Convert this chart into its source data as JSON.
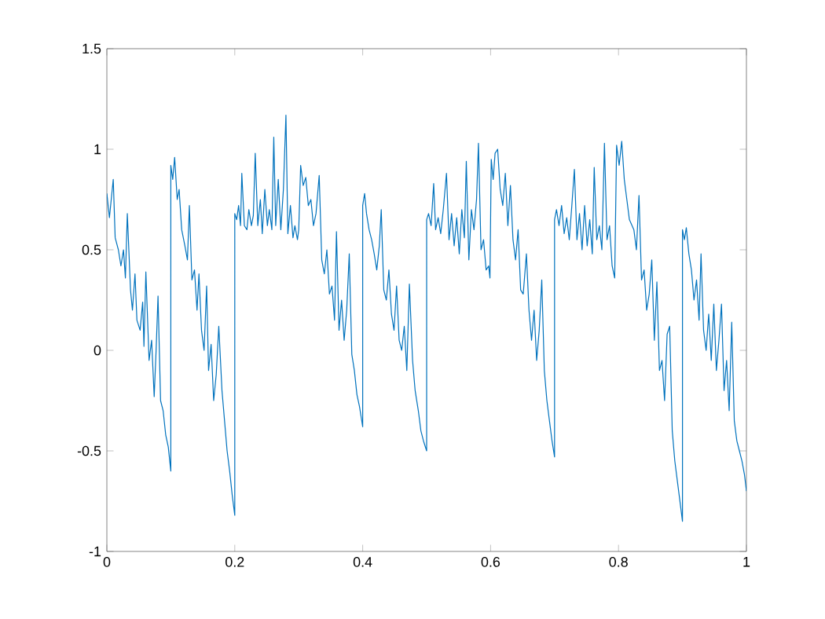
{
  "chart_data": {
    "type": "line",
    "color": "#0072bd",
    "x": [
      0.0,
      0.004,
      0.01,
      0.013,
      0.018,
      0.022,
      0.026,
      0.029,
      0.032,
      0.037,
      0.04,
      0.044,
      0.047,
      0.052,
      0.056,
      0.058,
      0.061,
      0.066,
      0.07,
      0.074,
      0.077,
      0.08,
      0.084,
      0.088,
      0.092,
      0.096,
      0.1,
      0.1,
      0.103,
      0.106,
      0.11,
      0.113,
      0.117,
      0.122,
      0.126,
      0.129,
      0.133,
      0.137,
      0.141,
      0.144,
      0.148,
      0.152,
      0.156,
      0.159,
      0.163,
      0.167,
      0.171,
      0.175,
      0.18,
      0.184,
      0.188,
      0.192,
      0.196,
      0.2,
      0.2,
      0.203,
      0.206,
      0.209,
      0.211,
      0.215,
      0.219,
      0.222,
      0.226,
      0.229,
      0.232,
      0.236,
      0.24,
      0.243,
      0.247,
      0.251,
      0.254,
      0.258,
      0.261,
      0.264,
      0.268,
      0.272,
      0.276,
      0.28,
      0.283,
      0.287,
      0.291,
      0.294,
      0.298,
      0.3,
      0.303,
      0.307,
      0.311,
      0.315,
      0.319,
      0.323,
      0.327,
      0.332,
      0.336,
      0.34,
      0.344,
      0.348,
      0.352,
      0.356,
      0.359,
      0.363,
      0.367,
      0.371,
      0.375,
      0.379,
      0.383,
      0.387,
      0.391,
      0.395,
      0.4,
      0.4,
      0.403,
      0.406,
      0.41,
      0.414,
      0.418,
      0.422,
      0.426,
      0.429,
      0.433,
      0.437,
      0.441,
      0.445,
      0.449,
      0.453,
      0.457,
      0.461,
      0.465,
      0.469,
      0.473,
      0.478,
      0.482,
      0.487,
      0.491,
      0.495,
      0.5,
      0.5,
      0.503,
      0.507,
      0.511,
      0.514,
      0.518,
      0.522,
      0.526,
      0.531,
      0.535,
      0.539,
      0.543,
      0.547,
      0.551,
      0.555,
      0.559,
      0.562,
      0.566,
      0.57,
      0.574,
      0.578,
      0.581,
      0.585,
      0.589,
      0.593,
      0.597,
      0.599,
      0.601,
      0.604,
      0.607,
      0.611,
      0.615,
      0.619,
      0.623,
      0.627,
      0.631,
      0.635,
      0.639,
      0.643,
      0.647,
      0.651,
      0.656,
      0.66,
      0.664,
      0.668,
      0.672,
      0.676,
      0.68,
      0.684,
      0.688,
      0.692,
      0.696,
      0.7,
      0.7,
      0.703,
      0.707,
      0.711,
      0.715,
      0.719,
      0.723,
      0.727,
      0.731,
      0.735,
      0.739,
      0.743,
      0.747,
      0.751,
      0.755,
      0.759,
      0.762,
      0.766,
      0.77,
      0.774,
      0.778,
      0.782,
      0.786,
      0.79,
      0.794,
      0.797,
      0.801,
      0.805,
      0.809,
      0.813,
      0.817,
      0.824,
      0.828,
      0.832,
      0.836,
      0.84,
      0.844,
      0.848,
      0.852,
      0.856,
      0.86,
      0.864,
      0.868,
      0.872,
      0.876,
      0.88,
      0.884,
      0.888,
      0.892,
      0.896,
      0.9,
      0.9,
      0.903,
      0.906,
      0.91,
      0.914,
      0.918,
      0.922,
      0.926,
      0.929,
      0.933,
      0.937,
      0.941,
      0.945,
      0.949,
      0.953,
      0.957,
      0.961,
      0.965,
      0.969,
      0.973,
      0.977,
      0.981,
      0.985,
      0.989,
      0.993,
      0.997,
      1.0
    ],
    "values": [
      0.78,
      0.66,
      0.85,
      0.56,
      0.5,
      0.42,
      0.5,
      0.36,
      0.68,
      0.3,
      0.2,
      0.38,
      0.15,
      0.1,
      0.24,
      0.02,
      0.39,
      -0.05,
      0.05,
      -0.23,
      0.0,
      0.27,
      -0.25,
      -0.3,
      -0.42,
      -0.48,
      -0.6,
      0.92,
      0.85,
      0.96,
      0.75,
      0.8,
      0.6,
      0.52,
      0.45,
      0.72,
      0.35,
      0.4,
      0.2,
      0.38,
      0.1,
      0.0,
      0.32,
      -0.1,
      0.03,
      -0.25,
      -0.12,
      0.12,
      -0.2,
      -0.35,
      -0.5,
      -0.6,
      -0.72,
      -0.82,
      0.68,
      0.65,
      0.72,
      0.62,
      0.88,
      0.62,
      0.6,
      0.7,
      0.62,
      0.67,
      0.98,
      0.62,
      0.75,
      0.58,
      0.8,
      0.62,
      0.7,
      0.6,
      1.06,
      0.62,
      0.85,
      0.6,
      0.8,
      1.17,
      0.58,
      0.72,
      0.56,
      0.62,
      0.55,
      0.6,
      0.92,
      0.82,
      0.86,
      0.72,
      0.75,
      0.62,
      0.68,
      0.87,
      0.45,
      0.38,
      0.5,
      0.28,
      0.32,
      0.15,
      0.59,
      0.1,
      0.25,
      0.05,
      0.2,
      0.48,
      -0.02,
      -0.1,
      -0.22,
      -0.28,
      -0.38,
      0.72,
      0.78,
      0.68,
      0.6,
      0.55,
      0.48,
      0.4,
      0.52,
      0.7,
      0.3,
      0.25,
      0.4,
      0.18,
      0.1,
      0.32,
      0.05,
      0.0,
      0.12,
      -0.1,
      0.33,
      -0.05,
      -0.2,
      -0.3,
      -0.4,
      -0.45,
      -0.5,
      0.65,
      0.68,
      0.62,
      0.83,
      0.6,
      0.66,
      0.58,
      0.7,
      0.88,
      0.55,
      0.68,
      0.52,
      0.66,
      0.48,
      0.7,
      0.56,
      0.94,
      0.45,
      0.7,
      0.6,
      0.75,
      1.03,
      0.5,
      0.55,
      0.4,
      0.42,
      0.36,
      0.95,
      0.85,
      0.98,
      1.0,
      0.8,
      0.72,
      0.88,
      0.62,
      0.82,
      0.55,
      0.45,
      0.6,
      0.3,
      0.28,
      0.48,
      0.2,
      0.05,
      0.2,
      -0.05,
      0.1,
      0.35,
      -0.1,
      -0.25,
      -0.35,
      -0.45,
      -0.53,
      0.65,
      0.7,
      0.62,
      0.72,
      0.58,
      0.66,
      0.55,
      0.72,
      0.9,
      0.55,
      0.68,
      0.5,
      0.72,
      0.52,
      0.65,
      0.48,
      0.91,
      0.55,
      0.62,
      0.5,
      1.03,
      0.55,
      0.62,
      0.42,
      0.36,
      1.02,
      0.92,
      1.04,
      0.85,
      0.75,
      0.65,
      0.6,
      0.5,
      0.77,
      0.35,
      0.4,
      0.2,
      0.28,
      0.45,
      0.05,
      0.34,
      -0.1,
      -0.05,
      -0.25,
      0.08,
      0.12,
      -0.4,
      -0.55,
      -0.65,
      -0.75,
      -0.85,
      0.6,
      0.55,
      0.61,
      0.48,
      0.4,
      0.25,
      0.35,
      0.15,
      0.48,
      0.1,
      0.0,
      0.18,
      -0.05,
      0.23,
      -0.1,
      0.05,
      0.23,
      -0.2,
      -0.05,
      -0.3,
      0.14,
      -0.35,
      -0.45,
      -0.5,
      -0.55,
      -0.62,
      -0.7
    ],
    "xlim": [
      0,
      1
    ],
    "ylim": [
      -1,
      1.5
    ],
    "xticks": [
      0,
      0.2,
      0.4,
      0.6,
      0.8,
      1
    ],
    "yticks": [
      -1,
      -0.5,
      0,
      0.5,
      1,
      1.5
    ]
  }
}
